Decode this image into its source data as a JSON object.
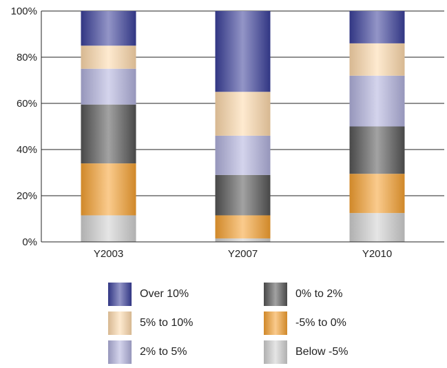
{
  "chart_data": {
    "type": "bar",
    "stacked": true,
    "categories": [
      "Y2003",
      "Y2007",
      "Y2010"
    ],
    "series": [
      {
        "name": "Below -5%",
        "color": "#cfcfcf",
        "values": [
          11.5,
          1.5,
          12.5
        ]
      },
      {
        "name": "-5% to 0%",
        "color": "#f5a030",
        "values": [
          22.5,
          10.0,
          17.0
        ]
      },
      {
        "name": "0% to 2%",
        "color": "#555555",
        "values": [
          25.5,
          17.5,
          20.5
        ]
      },
      {
        "name": "2% to 5%",
        "color": "#b0b0dc",
        "values": [
          15.5,
          17.0,
          22.0
        ]
      },
      {
        "name": "5% to 10%",
        "color": "#fdd9aa",
        "values": [
          10.0,
          19.0,
          14.0
        ]
      },
      {
        "name": "Over 10%",
        "color": "#3a3f9a",
        "values": [
          15.0,
          35.0,
          14.0
        ]
      }
    ],
    "yticks": [
      "0%",
      "20%",
      "40%",
      "60%",
      "80%",
      "100%"
    ],
    "ylim": [
      0,
      100
    ],
    "legend_placement": "bottom",
    "legend_order": [
      "Over 10%",
      "0% to 2%",
      "5% to 10%",
      "-5% to 0%",
      "2% to 5%",
      "Below -5%"
    ]
  }
}
